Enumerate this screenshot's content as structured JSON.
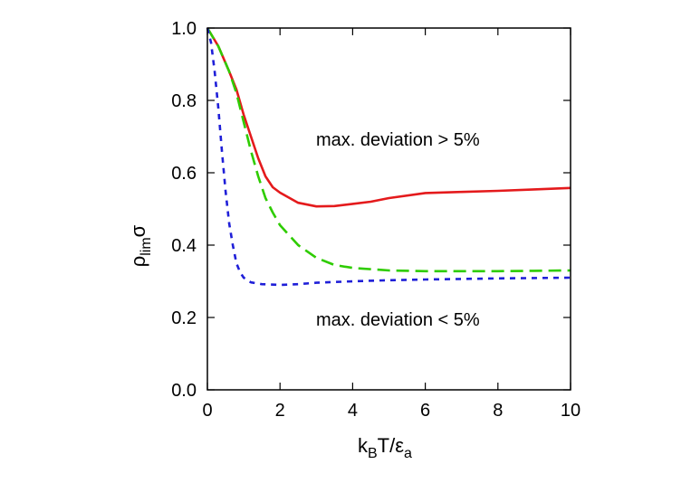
{
  "chart_data": {
    "type": "line",
    "title": "",
    "xlabel": {
      "base": "k",
      "sub1": "B",
      "mid": "T/ε",
      "sub2": "a"
    },
    "ylabel": {
      "base": "ρ",
      "sub": "lim",
      "tail": "σ"
    },
    "xlim": [
      0,
      10
    ],
    "ylim": [
      0.0,
      1.0
    ],
    "xticks": [
      "0",
      "2",
      "4",
      "6",
      "8",
      "10"
    ],
    "yticks": [
      "0.0",
      "0.2",
      "0.4",
      "0.6",
      "0.8",
      "1.0"
    ],
    "grid": false,
    "legend": "none",
    "annotations": {
      "upper": "max. deviation > 5%",
      "lower": "max. deviation < 5%"
    },
    "series": [
      {
        "color": "#e41a1c",
        "style": "solid",
        "x": [
          0,
          0.3,
          0.6,
          0.8,
          1.0,
          1.2,
          1.4,
          1.6,
          1.8,
          2.0,
          2.5,
          3.0,
          3.5,
          4.0,
          4.5,
          5.0,
          6.0,
          7.0,
          8.0,
          9.0,
          10.0
        ],
        "y": [
          1.0,
          0.95,
          0.88,
          0.83,
          0.76,
          0.7,
          0.64,
          0.59,
          0.56,
          0.545,
          0.517,
          0.507,
          0.508,
          0.514,
          0.52,
          0.53,
          0.544,
          0.547,
          0.55,
          0.554,
          0.558
        ]
      },
      {
        "color": "#2ecc00",
        "style": "dashed",
        "x": [
          0,
          0.3,
          0.6,
          0.8,
          1.0,
          1.2,
          1.4,
          1.6,
          1.8,
          2.0,
          2.5,
          3.0,
          3.5,
          4.0,
          5.0,
          6.0,
          7.0,
          8.0,
          9.0,
          10.0
        ],
        "y": [
          1.0,
          0.95,
          0.88,
          0.82,
          0.74,
          0.66,
          0.59,
          0.53,
          0.49,
          0.455,
          0.4,
          0.365,
          0.345,
          0.337,
          0.33,
          0.328,
          0.328,
          0.328,
          0.329,
          0.33
        ]
      },
      {
        "color": "#1f1fd8",
        "style": "dotted",
        "x": [
          0,
          0.1,
          0.2,
          0.3,
          0.4,
          0.5,
          0.6,
          0.7,
          0.8,
          0.9,
          1.0,
          1.2,
          1.5,
          2.0,
          2.5,
          3.0,
          4.0,
          5.0,
          6.0,
          8.0,
          10.0
        ],
        "y": [
          1.0,
          0.96,
          0.88,
          0.78,
          0.66,
          0.55,
          0.46,
          0.4,
          0.35,
          0.325,
          0.31,
          0.297,
          0.292,
          0.29,
          0.292,
          0.296,
          0.3,
          0.303,
          0.305,
          0.308,
          0.31
        ]
      }
    ]
  }
}
